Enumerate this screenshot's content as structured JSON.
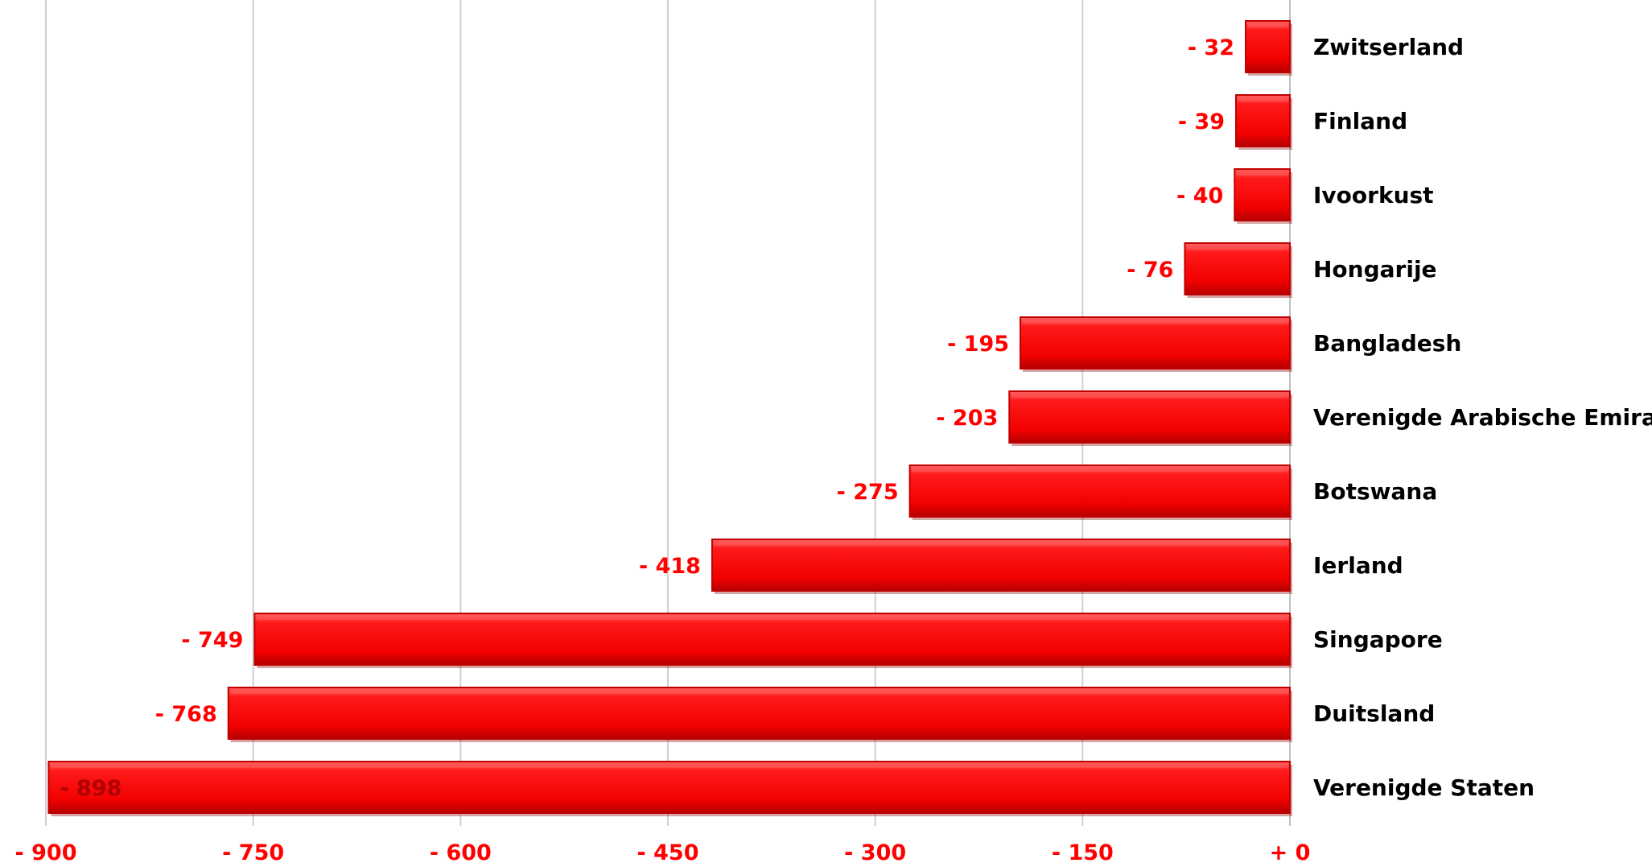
{
  "chart_data": {
    "type": "bar",
    "orientation": "horizontal",
    "categories": [
      "Zwitserland",
      "Finland",
      "Ivoorkust",
      "Hongarije",
      "Bangladesh",
      "Verenigde Arabische Emiraten",
      "Botswana",
      "Ierland",
      "Singapore",
      "Duitsland",
      "Verenigde Staten"
    ],
    "values": [
      -32,
      -39,
      -40,
      -76,
      -195,
      -203,
      -275,
      -418,
      -749,
      -768,
      -898
    ],
    "data_labels": [
      "- 32",
      "- 39",
      "- 40",
      "- 76",
      "- 195",
      "- 203",
      "- 275",
      "- 418",
      "- 749",
      "- 768",
      "- 898"
    ],
    "xlim": [
      -900,
      0
    ],
    "x_ticks": [
      -900,
      -750,
      -600,
      -450,
      -300,
      -150,
      0
    ],
    "x_tick_labels": [
      "- 900",
      "- 750",
      "- 600",
      "- 450",
      "- 300",
      "- 150",
      "+ 0"
    ],
    "title": "",
    "xlabel": "",
    "ylabel": "",
    "grid": true,
    "legend": false,
    "colors": {
      "bar": "#ff0000",
      "bar_border": "#c00000",
      "bar_highlight": "#ff5a5a",
      "bar_shadow": "#b00000",
      "label": "#ff0000",
      "category_text": "#000000",
      "gridline": "#d0d0d0"
    }
  }
}
